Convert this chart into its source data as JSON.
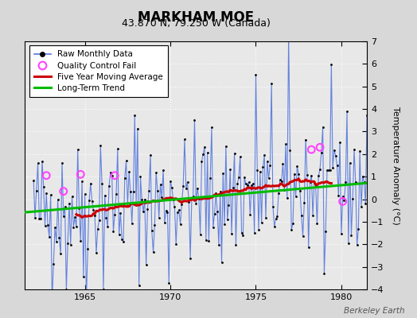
{
  "title": "MARKHAM MOE",
  "subtitle": "43.870 N, 79.250 W (Canada)",
  "watermark": "Berkeley Earth",
  "ylabel": "Temperature Anomaly (°C)",
  "ylim": [
    -4,
    7
  ],
  "xlim": [
    1961.5,
    1981.5
  ],
  "yticks": [
    -4,
    -3,
    -2,
    -1,
    0,
    1,
    2,
    3,
    4,
    5,
    6,
    7
  ],
  "xticks": [
    1965,
    1970,
    1975,
    1980
  ],
  "bg_color": "#d8d8d8",
  "plot_bg_color": "#e8e8e8",
  "raw_line_color": "#5577dd",
  "raw_dot_color": "#000000",
  "qc_fail_color": "#ff44ff",
  "moving_avg_color": "#cc0000",
  "trend_color": "#00bb00",
  "seed": 42,
  "n_years": 20,
  "start_year": 1962,
  "trend_slope": 0.065,
  "trend_intercept": -0.55,
  "qc_fail_points": [
    [
      1962.75,
      1.05
    ],
    [
      1963.75,
      0.35
    ],
    [
      1964.75,
      1.1
    ],
    [
      1966.75,
      1.05
    ],
    [
      1978.25,
      2.2
    ],
    [
      1978.75,
      2.3
    ],
    [
      1980.08,
      -0.1
    ]
  ]
}
